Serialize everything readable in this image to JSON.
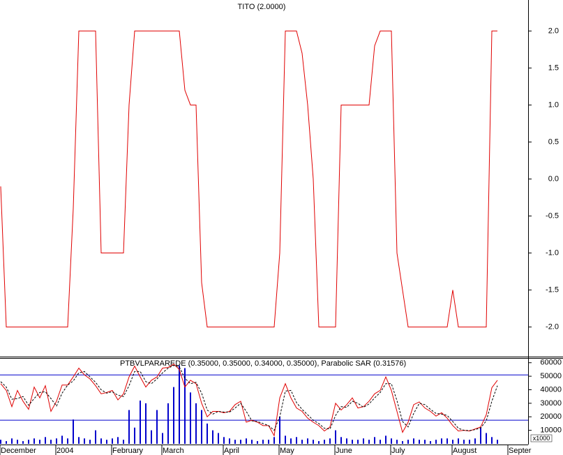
{
  "chart_data": [
    {
      "type": "line",
      "title": "TITO (2.0000)",
      "series": [
        {
          "name": null,
          "color": "#e00000",
          "values": [
            -0.1,
            -2,
            -2,
            -2,
            -2,
            -2,
            -2,
            -2,
            -2,
            -2,
            -2,
            -2,
            -2,
            -0.4,
            2,
            2,
            2,
            2,
            -1,
            -1,
            -1,
            -1,
            -1,
            1,
            2,
            2,
            2,
            2,
            2,
            2,
            2,
            2,
            2,
            1.2,
            1,
            1,
            -1.4,
            -2,
            -2,
            -2,
            -2,
            -2,
            -2,
            -2,
            -2,
            -2,
            -2,
            -2,
            -2,
            -2,
            -1,
            2,
            2,
            2,
            1.7,
            1,
            0,
            -2,
            -2,
            -2,
            -2,
            1,
            1,
            1,
            1,
            1,
            1,
            1.8,
            2,
            2,
            2,
            -1,
            -1.5,
            -2,
            -2,
            -2,
            -2,
            -2,
            -2,
            -2,
            -2,
            -1.5,
            -2,
            -2,
            -2,
            -2,
            -2,
            -2,
            2,
            2,
            null,
            null
          ]
        }
      ],
      "ylim": [
        -2.4,
        2.4
      ],
      "yticks": [
        {
          "value": 2,
          "label": "2.0"
        },
        1.5,
        {
          "value": 1,
          "label": "1.0"
        },
        0.5,
        {
          "value": 0,
          "label": "0.0"
        },
        -0.5,
        {
          "value": -1,
          "label": "-1.0"
        },
        -1.5,
        {
          "value": -2,
          "label": "-2.0"
        }
      ]
    },
    {
      "type": "combo",
      "title": "PTBVLPARAREDE (0.35000, 0.35000, 0.34000, 0.35000), Parabolic SAR (0.31576)",
      "categories": [
        "December",
        null,
        null,
        null,
        null,
        null,
        null,
        null,
        null,
        null,
        "2004",
        null,
        null,
        null,
        null,
        null,
        null,
        null,
        null,
        null,
        "February",
        null,
        null,
        null,
        null,
        null,
        null,
        null,
        null,
        "March",
        null,
        null,
        null,
        null,
        null,
        null,
        null,
        null,
        null,
        null,
        "April",
        null,
        null,
        null,
        null,
        null,
        null,
        null,
        null,
        null,
        "May",
        null,
        null,
        null,
        null,
        null,
        null,
        null,
        null,
        null,
        "June",
        null,
        null,
        null,
        null,
        null,
        null,
        null,
        null,
        null,
        "July",
        null,
        null,
        null,
        null,
        null,
        null,
        null,
        null,
        null,
        null,
        "August",
        null,
        null,
        null,
        null,
        null,
        null,
        null,
        null,
        null,
        "Septer"
      ],
      "series": [
        {
          "name": null,
          "type": "bar",
          "color": "#0000cc",
          "values": [
            3000,
            2000,
            4000,
            3000,
            2000,
            3000,
            4000,
            3000,
            5000,
            3000,
            4000,
            6000,
            4000,
            18000,
            5000,
            4000,
            3000,
            10000,
            4000,
            3000,
            4000,
            5000,
            3000,
            25000,
            12000,
            32000,
            30000,
            10000,
            25000,
            8000,
            30000,
            42000,
            58000,
            56000,
            38000,
            30000,
            25000,
            15000,
            10000,
            8000,
            5000,
            4000,
            3000,
            3000,
            4000,
            3000,
            2000,
            3000,
            3000,
            5000,
            20000,
            6000,
            4000,
            5000,
            3000,
            4000,
            3000,
            2000,
            3000,
            4000,
            10000,
            5000,
            4000,
            3000,
            3000,
            4000,
            3000,
            5000,
            3000,
            6000,
            4000,
            3000,
            2000,
            3000,
            4000,
            3000,
            3000,
            2000,
            3000,
            4000,
            4000,
            3000,
            4000,
            3000,
            3000,
            4000,
            12000,
            8000,
            5000,
            3000,
            null,
            null
          ]
        },
        {
          "name": null,
          "type": "line",
          "dash": false,
          "color": "#e00000",
          "values": [
            44500,
            39500,
            27500,
            39500,
            31500,
            25500,
            42000,
            34000,
            43000,
            24000,
            31500,
            43500,
            43500,
            49500,
            56000,
            51000,
            48000,
            43000,
            37000,
            38000,
            39500,
            32500,
            37000,
            49500,
            57500,
            49500,
            42000,
            47000,
            49500,
            56000,
            56500,
            59000,
            55000,
            42000,
            47000,
            44500,
            30000,
            20000,
            24000,
            24000,
            23000,
            24000,
            29000,
            31500,
            16000,
            17500,
            16000,
            13500,
            13500,
            6000,
            34000,
            44500,
            34000,
            26500,
            24000,
            19000,
            16000,
            13500,
            9500,
            12500,
            30000,
            25000,
            29000,
            34000,
            26500,
            27500,
            31500,
            37000,
            39500,
            49500,
            39500,
            24000,
            8500,
            16000,
            29000,
            31000,
            26500,
            24000,
            20500,
            23000,
            19000,
            13500,
            9500,
            10000,
            9500,
            11000,
            12500,
            21500,
            41500,
            47000,
            null,
            null
          ]
        },
        {
          "name": null,
          "type": "line",
          "dash": true,
          "color": "#000000",
          "values": [
            46000,
            42000,
            33000,
            33500,
            35000,
            28500,
            33500,
            38000,
            38500,
            33500,
            28000,
            37500,
            43500,
            46500,
            52500,
            53500,
            49500,
            45500,
            40000,
            37500,
            38500,
            36000,
            35000,
            43000,
            53500,
            53500,
            46000,
            44500,
            48000,
            52500,
            56000,
            58000,
            57000,
            48500,
            44500,
            45500,
            37500,
            25000,
            22000,
            24000,
            23500,
            23500,
            26500,
            30000,
            24000,
            17000,
            16500,
            15000,
            13500,
            10000,
            20000,
            39000,
            39500,
            30500,
            25500,
            21500,
            17500,
            15000,
            11500,
            11000,
            21000,
            27500,
            27000,
            31500,
            30000,
            27000,
            29500,
            34000,
            38000,
            44500,
            44500,
            32000,
            16500,
            12500,
            22500,
            30000,
            29000,
            25500,
            22500,
            22000,
            21000,
            16500,
            11500,
            10000,
            9800,
            10500,
            11800,
            17000,
            31500,
            43000,
            null,
            null
          ]
        }
      ],
      "hlines": [
        51000,
        17500
      ],
      "hline_color": "#0000cc",
      "ylim": [
        0,
        64000
      ],
      "yticks": [
        10000,
        20000,
        30000,
        40000,
        50000,
        60000
      ],
      "y_unit_label": "x1000"
    }
  ]
}
